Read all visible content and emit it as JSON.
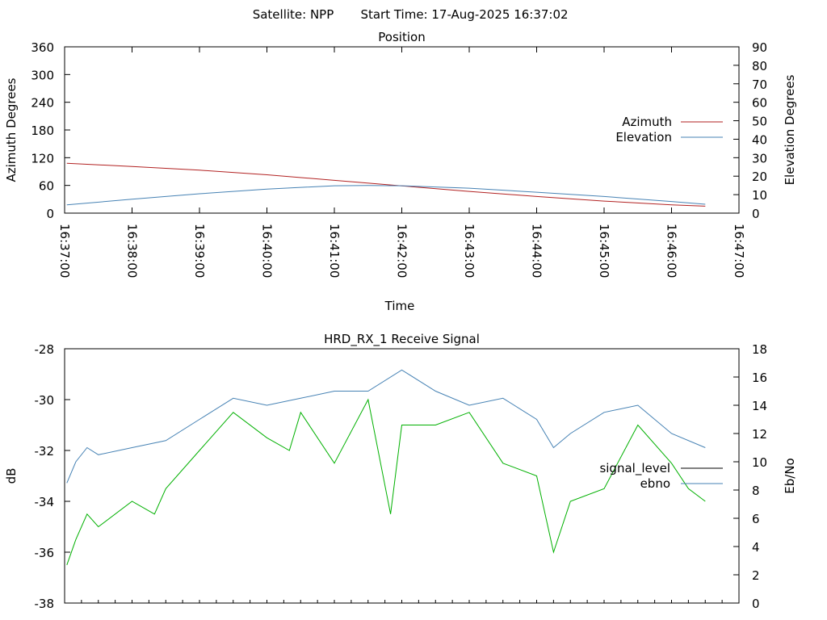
{
  "header": {
    "satellite": "Satellite: NPP",
    "start_time": "Start Time: 17-Aug-2025 16:37:02"
  },
  "chart_data": [
    {
      "type": "line",
      "title": "Position",
      "xlabel": "Time",
      "ylabel": "Azimuth Degrees",
      "y2label": "Elevation Degrees",
      "ylim": [
        0,
        360
      ],
      "y2lim": [
        0,
        90
      ],
      "yticks": [
        "0",
        "60",
        "120",
        "180",
        "240",
        "300",
        "360"
      ],
      "y2ticks": [
        "0",
        "10",
        "20",
        "30",
        "40",
        "50",
        "60",
        "70",
        "80",
        "90"
      ],
      "xlim": [
        "16:37:00",
        "16:47:00"
      ],
      "xticks": [
        "16:37:00",
        "16:38:00",
        "16:39:00",
        "16:40:00",
        "16:41:00",
        "16:42:00",
        "16:43:00",
        "16:44:00",
        "16:45:00",
        "16:46:00",
        "16:47:00"
      ],
      "grid": false,
      "legend": "right",
      "series": [
        {
          "name": "Azimuth",
          "axis": "left",
          "color": "#b22222",
          "x": [
            "16:37:02",
            "16:38:00",
            "16:39:00",
            "16:40:00",
            "16:41:00",
            "16:42:00",
            "16:43:00",
            "16:44:00",
            "16:45:00",
            "16:46:00",
            "16:46:30"
          ],
          "values": [
            108,
            101,
            93,
            83,
            71,
            59,
            47,
            36,
            26,
            18,
            15
          ]
        },
        {
          "name": "Elevation",
          "axis": "right",
          "color": "#4682b4",
          "x": [
            "16:37:02",
            "16:38:00",
            "16:39:00",
            "16:40:00",
            "16:41:00",
            "16:41:30",
            "16:42:00",
            "16:43:00",
            "16:44:00",
            "16:45:00",
            "16:46:00",
            "16:46:30"
          ],
          "values": [
            4.5,
            7.5,
            10.5,
            13,
            14.8,
            15,
            14.8,
            13.5,
            11.3,
            9,
            6.3,
            4.8
          ]
        }
      ]
    },
    {
      "type": "line",
      "title": "HRD_RX_1 Receive Signal",
      "ylabel": "dB",
      "y2label": "Eb/No",
      "ylim": [
        -38,
        -28
      ],
      "y2lim": [
        0,
        18
      ],
      "yticks": [
        "-38",
        "-36",
        "-34",
        "-32",
        "-30",
        "-28"
      ],
      "y2ticks": [
        "0",
        "2",
        "4",
        "6",
        "8",
        "10",
        "12",
        "14",
        "16",
        "18"
      ],
      "xlim": [
        "16:37:00",
        "16:47:00"
      ],
      "grid": false,
      "legend": "right",
      "series": [
        {
          "name": "signal_level",
          "axis": "left",
          "color": "#000000",
          "values": []
        },
        {
          "name": "ebno",
          "axis": "right",
          "color": "#4682b4",
          "x": [
            "16:37:02",
            "16:37:10",
            "16:37:20",
            "16:37:30",
            "16:38:00",
            "16:38:30",
            "16:39:00",
            "16:39:30",
            "16:40:00",
            "16:40:30",
            "16:41:00",
            "16:41:30",
            "16:42:00",
            "16:42:30",
            "16:43:00",
            "16:43:30",
            "16:44:00",
            "16:44:15",
            "16:44:30",
            "16:45:00",
            "16:45:30",
            "16:46:00",
            "16:46:30"
          ],
          "values": [
            8.5,
            10,
            11,
            10.5,
            11,
            11.5,
            13,
            14.5,
            14,
            14.5,
            15,
            15,
            16.5,
            15,
            14,
            14.5,
            13,
            11,
            12,
            13.5,
            14,
            12,
            11
          ]
        },
        {
          "name": "",
          "axis": "left",
          "color": "#00b000",
          "x": [
            "16:37:02",
            "16:37:10",
            "16:37:20",
            "16:37:30",
            "16:38:00",
            "16:38:20",
            "16:38:30",
            "16:39:00",
            "16:39:30",
            "16:40:00",
            "16:40:20",
            "16:40:30",
            "16:41:00",
            "16:41:30",
            "16:41:50",
            "16:42:00",
            "16:42:30",
            "16:43:00",
            "16:43:30",
            "16:44:00",
            "16:44:15",
            "16:44:30",
            "16:45:00",
            "16:45:30",
            "16:46:00",
            "16:46:15",
            "16:46:30"
          ],
          "values": [
            -36.5,
            -35.5,
            -34.5,
            -35,
            -34,
            -34.5,
            -33.5,
            -32,
            -30.5,
            -31.5,
            -32,
            -30.5,
            -32.5,
            -30,
            -34.5,
            -31,
            -31,
            -30.5,
            -32.5,
            -33,
            -36,
            -34,
            -33.5,
            -31,
            -32.5,
            -33.5,
            -34
          ]
        }
      ]
    }
  ]
}
